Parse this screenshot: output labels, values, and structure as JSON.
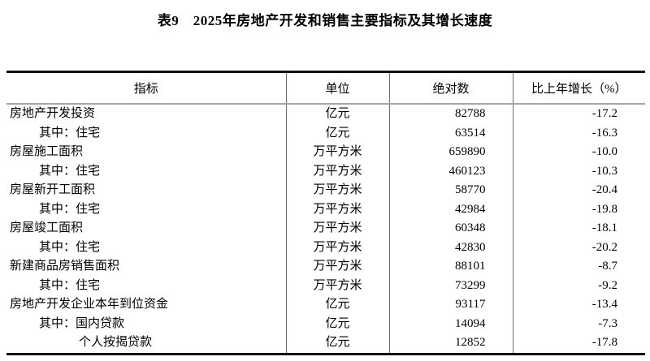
{
  "page": {
    "title": "表9　2025年房地产开发和销售主要指标及其增长速度"
  },
  "table": {
    "headers": [
      "指标",
      "单位",
      "绝对数",
      "比上年增长（%）"
    ],
    "rows": [
      {
        "indicator": "房地产开发投资",
        "indent": 0,
        "unit": "亿元",
        "value": "82788",
        "growth": "-17.2"
      },
      {
        "indicator": "其中：住宅",
        "indent": 1,
        "unit": "亿元",
        "value": "63514",
        "growth": "-16.3"
      },
      {
        "indicator": "房屋施工面积",
        "indent": 0,
        "unit": "万平方米",
        "value": "659890",
        "growth": "-10.0"
      },
      {
        "indicator": "其中：住宅",
        "indent": 1,
        "unit": "万平方米",
        "value": "460123",
        "growth": "-10.3"
      },
      {
        "indicator": "房屋新开工面积",
        "indent": 0,
        "unit": "万平方米",
        "value": "58770",
        "growth": "-20.4"
      },
      {
        "indicator": "其中：住宅",
        "indent": 1,
        "unit": "万平方米",
        "value": "42984",
        "growth": "-19.8"
      },
      {
        "indicator": "房屋竣工面积",
        "indent": 0,
        "unit": "万平方米",
        "value": "60348",
        "growth": "-18.1"
      },
      {
        "indicator": "其中：住宅",
        "indent": 1,
        "unit": "万平方米",
        "value": "42830",
        "growth": "-20.2"
      },
      {
        "indicator": "新建商品房销售面积",
        "indent": 0,
        "unit": "万平方米",
        "value": "88101",
        "growth": "-8.7"
      },
      {
        "indicator": "其中：住宅",
        "indent": 1,
        "unit": "万平方米",
        "value": "73299",
        "growth": "-9.2"
      },
      {
        "indicator": "房地产开发企业本年到位资金",
        "indent": 0,
        "unit": "亿元",
        "value": "93117",
        "growth": "-13.4"
      },
      {
        "indicator": "其中：国内贷款",
        "indent": 1,
        "unit": "亿元",
        "value": "14094",
        "growth": "-7.3"
      },
      {
        "indicator": "个人按揭贷款",
        "indent": 2,
        "unit": "亿元",
        "value": "12852",
        "growth": "-17.8"
      }
    ]
  },
  "colors": {
    "background": "#ffffff",
    "text": "#000000",
    "border_heavy": "#111111",
    "border_header": "#a6a6a6",
    "border_grid": "#6f6f6f"
  }
}
